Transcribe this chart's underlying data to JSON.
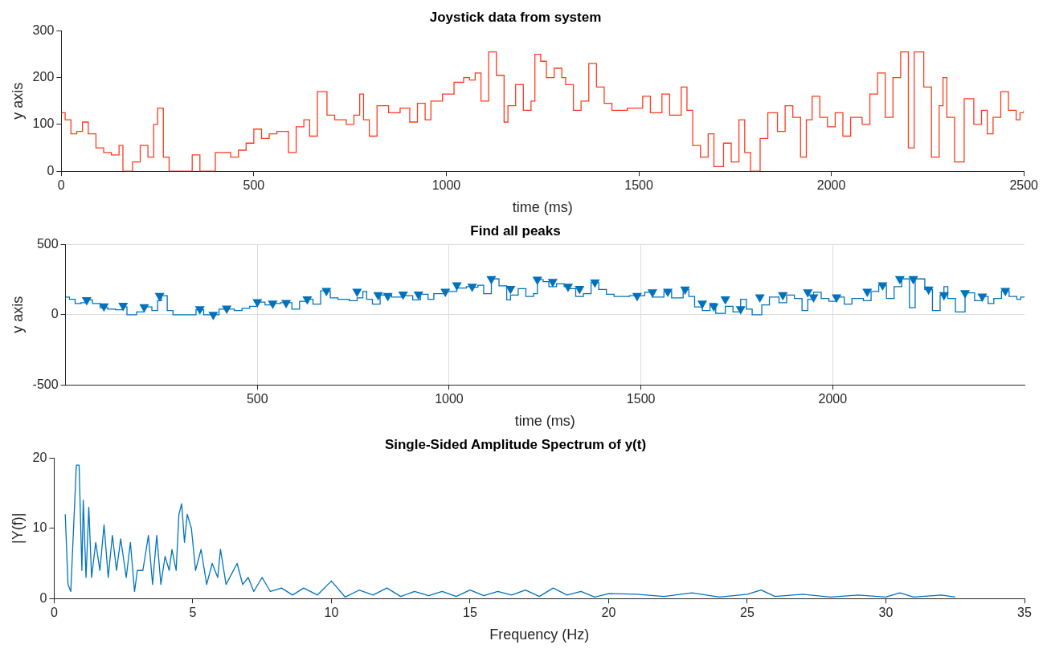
{
  "chart_data": [
    {
      "type": "step",
      "title": "Joystick data from system",
      "xlabel": "time (ms)",
      "ylabel": "y axis",
      "xlim": [
        0,
        2500
      ],
      "xticks": [
        0,
        500,
        1000,
        1500,
        2000,
        2500
      ],
      "ylim": [
        0,
        300
      ],
      "yticks": [
        0,
        100,
        200,
        300
      ],
      "grid": false,
      "legend": false,
      "series": [
        {
          "color": "#ff3b1f",
          "x": [
            0,
            10,
            25,
            40,
            55,
            70,
            90,
            110,
            130,
            150,
            160,
            185,
            205,
            225,
            240,
            250,
            265,
            280,
            340,
            360,
            400,
            440,
            460,
            480,
            500,
            520,
            540,
            560,
            590,
            610,
            630,
            645,
            665,
            690,
            710,
            740,
            760,
            775,
            785,
            800,
            820,
            850,
            880,
            905,
            925,
            945,
            960,
            990,
            1020,
            1045,
            1060,
            1075,
            1090,
            1110,
            1130,
            1150,
            1160,
            1180,
            1200,
            1220,
            1230,
            1245,
            1260,
            1280,
            1300,
            1310,
            1330,
            1350,
            1370,
            1390,
            1410,
            1430,
            1470,
            1510,
            1530,
            1560,
            1580,
            1610,
            1625,
            1640,
            1660,
            1680,
            1695,
            1720,
            1740,
            1760,
            1775,
            1790,
            1815,
            1835,
            1860,
            1880,
            1900,
            1920,
            1935,
            1950,
            1970,
            1990,
            2010,
            2030,
            2050,
            2080,
            2100,
            2120,
            2140,
            2160,
            2180,
            2200,
            2215,
            2240,
            2260,
            2280,
            2290,
            2300,
            2320,
            2345,
            2370,
            2390,
            2405,
            2420,
            2440,
            2460,
            2480,
            2490,
            2500
          ],
          "values": [
            125,
            110,
            80,
            85,
            105,
            80,
            50,
            40,
            35,
            55,
            0,
            20,
            55,
            30,
            100,
            135,
            30,
            0,
            35,
            0,
            40,
            30,
            45,
            60,
            90,
            70,
            80,
            85,
            40,
            95,
            110,
            75,
            170,
            120,
            110,
            100,
            120,
            165,
            110,
            75,
            140,
            125,
            135,
            105,
            145,
            110,
            150,
            165,
            190,
            200,
            195,
            210,
            150,
            255,
            205,
            105,
            140,
            185,
            130,
            150,
            250,
            235,
            200,
            220,
            200,
            185,
            130,
            150,
            230,
            180,
            145,
            130,
            135,
            160,
            125,
            165,
            120,
            180,
            130,
            55,
            30,
            80,
            10,
            60,
            20,
            110,
            40,
            0,
            70,
            125,
            85,
            140,
            115,
            30,
            110,
            160,
            115,
            95,
            125,
            75,
            115,
            100,
            165,
            210,
            115,
            200,
            255,
            50,
            255,
            180,
            30,
            140,
            200,
            115,
            20,
            155,
            100,
            130,
            80,
            115,
            170,
            130,
            110,
            125,
            130
          ]
        }
      ]
    },
    {
      "type": "step",
      "title": "Find all peaks",
      "xlabel": "time (ms)",
      "ylabel": "y axis",
      "xlim": [
        0,
        2500
      ],
      "xticks": [
        500,
        1000,
        1500,
        2000
      ],
      "ylim": [
        -500,
        500
      ],
      "yticks": [
        -500,
        0,
        500
      ],
      "grid": true,
      "legend": false,
      "series": [
        {
          "color": "#0072bd",
          "x": [
            0,
            10,
            25,
            40,
            55,
            70,
            90,
            110,
            130,
            150,
            160,
            185,
            205,
            225,
            240,
            250,
            265,
            280,
            340,
            360,
            400,
            440,
            460,
            480,
            500,
            520,
            540,
            560,
            590,
            610,
            630,
            645,
            665,
            690,
            710,
            740,
            760,
            775,
            785,
            800,
            820,
            850,
            880,
            905,
            925,
            945,
            960,
            990,
            1020,
            1045,
            1060,
            1075,
            1090,
            1110,
            1130,
            1150,
            1160,
            1180,
            1200,
            1220,
            1230,
            1245,
            1260,
            1280,
            1300,
            1310,
            1330,
            1350,
            1370,
            1390,
            1410,
            1430,
            1470,
            1510,
            1530,
            1560,
            1580,
            1610,
            1625,
            1640,
            1660,
            1680,
            1695,
            1720,
            1740,
            1760,
            1775,
            1790,
            1815,
            1835,
            1860,
            1880,
            1900,
            1920,
            1935,
            1950,
            1970,
            1990,
            2010,
            2030,
            2050,
            2080,
            2100,
            2120,
            2140,
            2160,
            2180,
            2200,
            2215,
            2240,
            2260,
            2280,
            2290,
            2300,
            2320,
            2345,
            2370,
            2390,
            2405,
            2420,
            2440,
            2460,
            2480,
            2490,
            2500
          ],
          "values": [
            125,
            110,
            80,
            85,
            105,
            80,
            50,
            40,
            35,
            55,
            0,
            20,
            55,
            30,
            100,
            135,
            30,
            0,
            35,
            0,
            40,
            30,
            45,
            60,
            90,
            70,
            80,
            85,
            40,
            95,
            110,
            75,
            170,
            120,
            110,
            100,
            120,
            165,
            110,
            75,
            140,
            125,
            135,
            105,
            145,
            110,
            150,
            165,
            190,
            200,
            195,
            210,
            150,
            255,
            205,
            105,
            140,
            185,
            130,
            150,
            250,
            235,
            200,
            220,
            200,
            185,
            130,
            150,
            230,
            180,
            145,
            130,
            135,
            160,
            125,
            165,
            120,
            180,
            130,
            55,
            30,
            80,
            10,
            60,
            20,
            110,
            40,
            0,
            70,
            125,
            85,
            140,
            115,
            30,
            110,
            160,
            115,
            95,
            125,
            75,
            115,
            100,
            165,
            210,
            115,
            200,
            255,
            50,
            255,
            180,
            30,
            140,
            200,
            115,
            20,
            155,
            100,
            130,
            80,
            115,
            170,
            130,
            110,
            125,
            130
          ]
        },
        {
          "type": "scatter",
          "color": "#0072bd",
          "marker": "triangle",
          "x": [
            55,
            100,
            150,
            205,
            245,
            350,
            385,
            420,
            500,
            540,
            575,
            630,
            680,
            760,
            815,
            840,
            880,
            920,
            990,
            1020,
            1060,
            1110,
            1160,
            1230,
            1270,
            1310,
            1340,
            1380,
            1490,
            1530,
            1570,
            1615,
            1660,
            1690,
            1720,
            1760,
            1810,
            1870,
            1935,
            1950,
            2010,
            2090,
            2130,
            2175,
            2210,
            2250,
            2290,
            2345,
            2390,
            2450
          ],
          "values": [
            105,
            60,
            65,
            55,
            135,
            40,
            0,
            45,
            90,
            80,
            85,
            110,
            170,
            165,
            140,
            135,
            145,
            145,
            165,
            210,
            200,
            255,
            185,
            250,
            235,
            200,
            185,
            230,
            135,
            160,
            165,
            180,
            80,
            60,
            110,
            40,
            125,
            140,
            160,
            125,
            125,
            165,
            210,
            255,
            255,
            180,
            140,
            155,
            130,
            170
          ]
        }
      ]
    },
    {
      "type": "line",
      "title": "Single-Sided Amplitude Spectrum of y(t)",
      "xlabel": "Frequency (Hz)",
      "ylabel": "|Y(f)|",
      "xlim": [
        0,
        35
      ],
      "xticks": [
        0,
        5,
        10,
        15,
        20,
        25,
        30,
        35
      ],
      "ylim": [
        0,
        20
      ],
      "yticks": [
        0,
        10,
        20
      ],
      "grid": false,
      "legend": false,
      "series": [
        {
          "color": "#0072bd",
          "x": [
            0.4,
            0.5,
            0.6,
            0.8,
            0.9,
            1.0,
            1.05,
            1.15,
            1.25,
            1.35,
            1.5,
            1.65,
            1.8,
            1.95,
            2.1,
            2.25,
            2.4,
            2.6,
            2.75,
            2.9,
            3.0,
            3.2,
            3.4,
            3.55,
            3.7,
            3.85,
            4.0,
            4.15,
            4.25,
            4.4,
            4.5,
            4.6,
            4.7,
            4.8,
            4.95,
            5.1,
            5.3,
            5.5,
            5.7,
            5.9,
            6.0,
            6.2,
            6.4,
            6.6,
            6.8,
            7.0,
            7.2,
            7.5,
            7.8,
            8.2,
            8.6,
            9.0,
            9.5,
            10.0,
            10.5,
            11,
            11.5,
            12,
            12.5,
            13,
            13.5,
            14,
            14.5,
            15,
            15.5,
            16,
            16.5,
            17,
            17.5,
            18,
            18.5,
            19,
            19.5,
            20,
            21,
            22,
            23,
            24,
            25,
            25.5,
            26,
            27,
            28,
            29,
            30,
            30.5,
            31,
            32,
            32.5
          ],
          "values": [
            12,
            2,
            1,
            19,
            19,
            4,
            14,
            3,
            13,
            3,
            8,
            4,
            10.5,
            3,
            9,
            4,
            8.5,
            3,
            8,
            1,
            4,
            4,
            9,
            2,
            9,
            2,
            6,
            4,
            7,
            4,
            12,
            13.5,
            8,
            12,
            10,
            4,
            7,
            2,
            5,
            3,
            7,
            2,
            3.5,
            5,
            2,
            3,
            1,
            3,
            1,
            1.5,
            0.5,
            1.5,
            0.5,
            2.5,
            0.2,
            1.2,
            0.5,
            1.5,
            0.3,
            1,
            0.4,
            1,
            0.3,
            1.2,
            0.4,
            1,
            0.5,
            1.2,
            0.3,
            1.5,
            0.5,
            1,
            0.2,
            0.7,
            0.6,
            0.3,
            0.8,
            0.2,
            0.6,
            1.2,
            0.3,
            0.6,
            0.2,
            0.5,
            0.2,
            0.8,
            0.2,
            0.5,
            0.2
          ]
        }
      ]
    }
  ]
}
